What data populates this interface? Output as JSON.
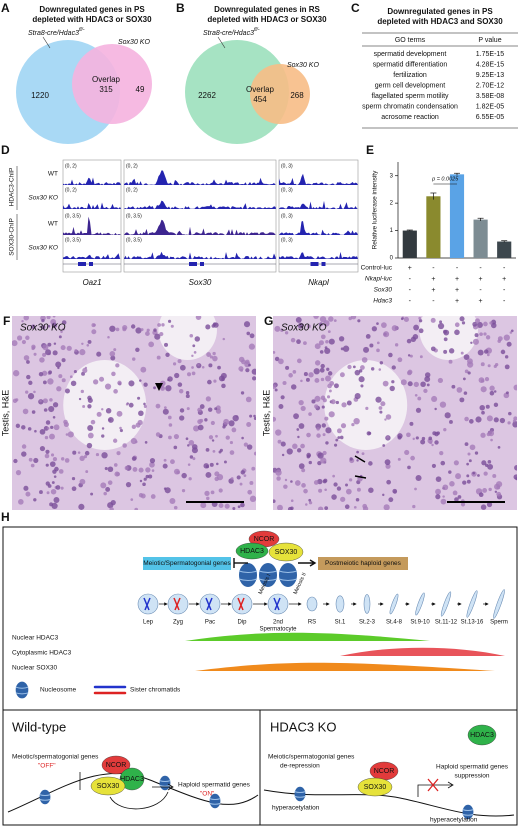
{
  "panels": {
    "a": {
      "label": "A",
      "title": [
        "Downregulated genes in PS",
        "depleted with HDAC3 or SOX30"
      ],
      "set1": "Stra8-cre/Hdac3",
      "set1_sup": "fl/-",
      "set2": "Sox30 KO",
      "only1": 1220,
      "overlap_label": "Overlap",
      "overlap": 315,
      "only2": 49
    },
    "b": {
      "label": "B",
      "title": [
        "Downregulated genes in RS",
        "depleted with HDAC3 or SOX30"
      ],
      "set1": "Stra8-cre/Hdac3",
      "set1_sup": "fl/-",
      "set2": "Sox30 KO",
      "only1": 2262,
      "overlap_label": "Overlap",
      "overlap": 454,
      "only2": 268
    },
    "c": {
      "label": "C",
      "title": [
        "Downregulated genes in PS",
        "depleted with HDAC3 and SOX30"
      ],
      "columns": [
        "GO terms",
        "P value"
      ],
      "rows": [
        [
          "spermatid development",
          "1.75E-15"
        ],
        [
          "spermatid differentiation",
          "4.28E-15"
        ],
        [
          "fertilization",
          "9.25E-13"
        ],
        [
          "germ cell development",
          "2.70E-12"
        ],
        [
          "flagellated sperm motility",
          "3.58E-08"
        ],
        [
          "sperm chromatin condensation",
          "1.82E-05"
        ],
        [
          "acrosome reaction",
          "6.55E-05"
        ]
      ]
    },
    "d": {
      "label": "D",
      "chip_labels": [
        "HDAC3-ChIP",
        "SOX30-ChIP"
      ],
      "conditions": [
        "WT",
        "Sox30 KO",
        "WT",
        "Sox30 KO"
      ],
      "genes": [
        "Oaz1",
        "Sox30",
        "Nkapl"
      ],
      "ranges": [
        [
          "(0, 2)",
          "(0, 2)",
          "(0, 3.5)",
          "(0, 3.5)"
        ],
        [
          "(0, 2)",
          "(0, 2)",
          "(0, 3.5)",
          "(0, 3.5)"
        ],
        [
          "(0, 3)",
          "(0, 3)",
          "(0, 3)",
          "(0, 3)"
        ]
      ]
    },
    "e": {
      "label": "E",
      "chart": {
        "type": "bar",
        "y_label": "Relative luciferase intensity",
        "values": [
          1.0,
          2.25,
          3.05,
          1.4,
          0.6
        ],
        "errors": [
          0.02,
          0.12,
          0.04,
          0.05,
          0.03
        ],
        "colors": [
          "#333a3f",
          "#8a8a2e",
          "#5aa3e6",
          "#7d8c93",
          "#3d474d"
        ],
        "ylim": [
          0,
          3.5
        ],
        "yticks": [
          0,
          1,
          2,
          3
        ],
        "annotation": "p = 0.0025",
        "rows": [
          {
            "name": "Control-luc",
            "signs": [
              "+",
              "-",
              "-",
              "-",
              "-"
            ]
          },
          {
            "name": "Nkapl-luc",
            "signs": [
              "-",
              "+",
              "+",
              "+",
              "+"
            ]
          },
          {
            "name": "Sox30",
            "signs": [
              "-",
              "+",
              "+",
              "-",
              "-"
            ]
          },
          {
            "name": "Hdac3",
            "signs": [
              "-",
              "-",
              "+",
              "+",
              "-"
            ]
          }
        ]
      }
    },
    "f": {
      "label": "F",
      "genotype": "Sox30 KO",
      "tissue": "Testis, H&E"
    },
    "g": {
      "label": "G",
      "genotype": "Sox30 KO",
      "tissue": "Testis, H&E"
    },
    "h": {
      "label": "H",
      "complex": [
        "NCOR",
        "HDAC3",
        "SOX30"
      ],
      "repressed": "Meiotic/Spermatogonial genes",
      "activated": "Postmeiotic haploid genes",
      "stages": [
        "Lep",
        "Zyg",
        "Pac",
        "Dip",
        [
          "2nd",
          "Spermatocyte"
        ],
        "RS",
        "St.1",
        "St.2-3",
        "St.4-8",
        "St.9-10",
        "St.11-12",
        "St.13-16",
        "Sperm"
      ],
      "meiosis": [
        "Meiosis I",
        "Meiosis II"
      ],
      "expression": [
        "Nuclear HDAC3",
        "Cytoplasmic HDAC3",
        "Nuclear SOX30"
      ],
      "legend": [
        "Nucleosome",
        "Sister chromatids"
      ],
      "wt": {
        "title": "Wild-type",
        "genes_off": "Meiotic/spermatogonial genes",
        "off": "\"OFF\"",
        "complex": [
          "NCOR",
          "HDAC3",
          "SOX30"
        ],
        "genes_on": "Haploid spermatid genes",
        "on": "\"ON\""
      },
      "ko": {
        "title": "HDAC3 KO",
        "free": "HDAC3",
        "genes1": "Meiotic/spermatogonial genes",
        "genes1_state": "de-repression",
        "complex": [
          "NCOR",
          "SOX30"
        ],
        "acet1": "hyperacetylation",
        "genes2": "Haploid spermatid genes",
        "genes2_state": "suppression",
        "acet2": "hyperacetylation"
      }
    }
  }
}
